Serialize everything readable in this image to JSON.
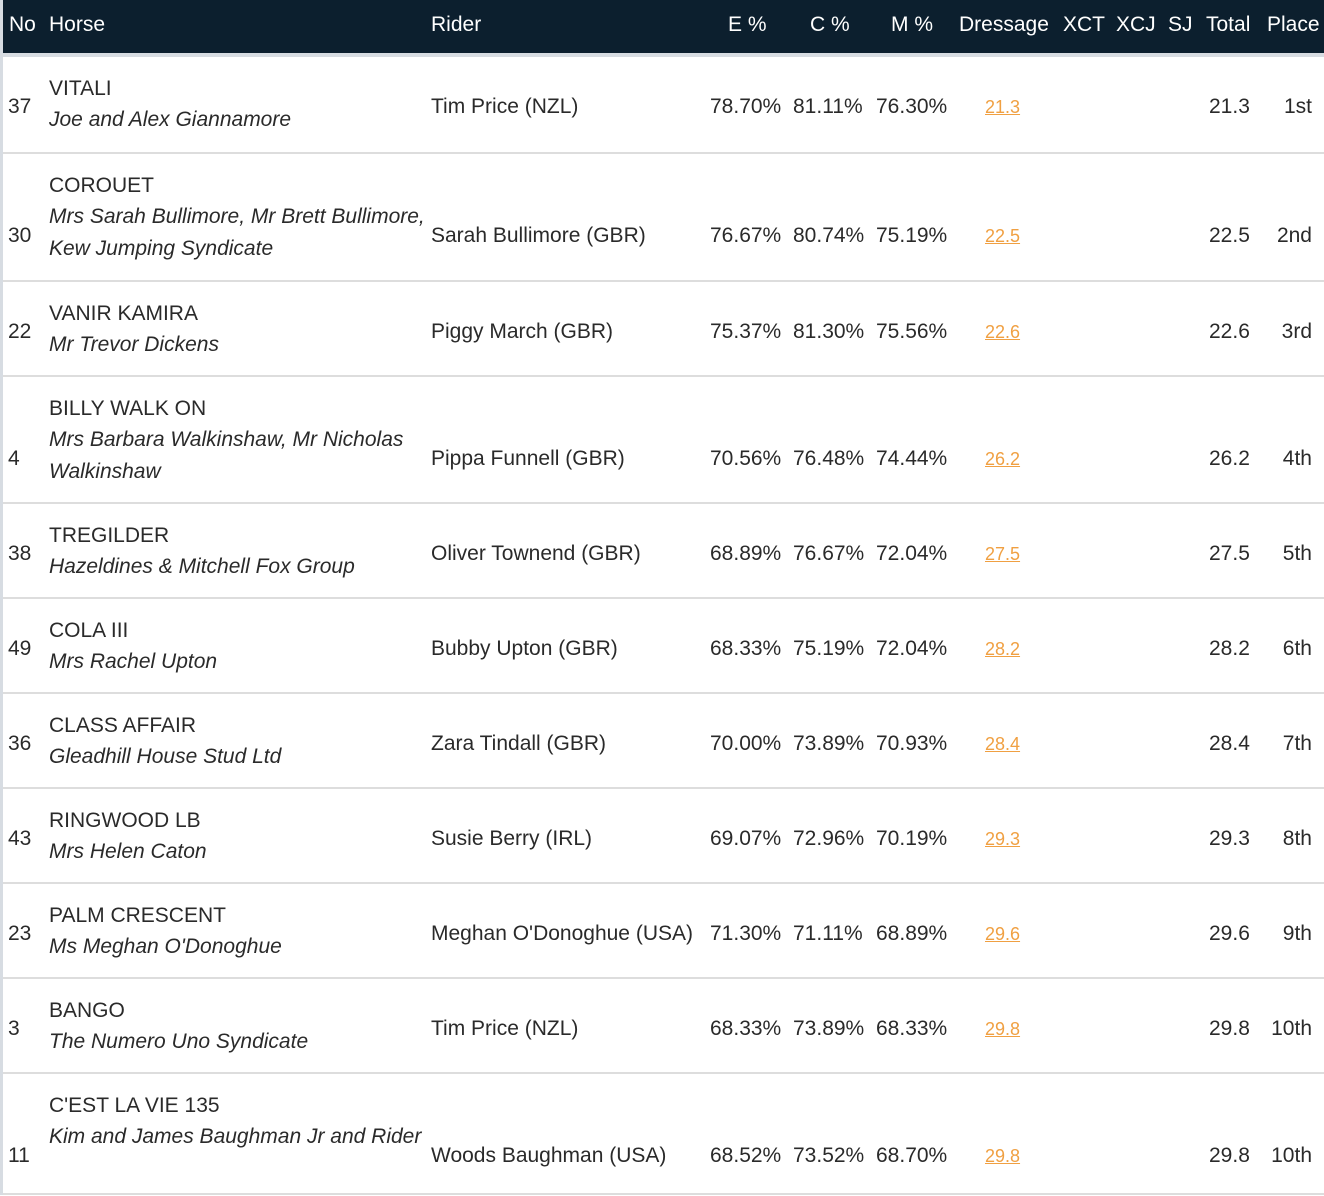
{
  "colors": {
    "header_bg": "#0c1f2e",
    "link": "#f0a042"
  },
  "columns": {
    "no": "No",
    "horse": "Horse",
    "rider": "Rider",
    "e": "E %",
    "c": "C %",
    "m": "M %",
    "dressage": "Dressage",
    "xct": "XCT",
    "xcj": "XCJ",
    "sj": "SJ",
    "total": "Total",
    "place": "Place"
  },
  "rows": [
    {
      "no": "37",
      "horse": "VITALI",
      "owner": "Joe and Alex Giannamore",
      "rider": "Tim Price (NZL)",
      "e": "78.70%",
      "c": "81.11%",
      "m": "76.30%",
      "dressage": "21.3",
      "total": "21.3",
      "place": "1st"
    },
    {
      "no": "30",
      "horse": "COROUET",
      "owner": "Mrs Sarah Bullimore, Mr Brett Bullimore, Kew Jumping Syndicate",
      "rider": "Sarah Bullimore (GBR)",
      "e": "76.67%",
      "c": "80.74%",
      "m": "75.19%",
      "dressage": "22.5",
      "total": "22.5",
      "place": "2nd"
    },
    {
      "no": "22",
      "horse": "VANIR KAMIRA",
      "owner": "Mr Trevor Dickens",
      "rider": "Piggy March (GBR)",
      "e": "75.37%",
      "c": "81.30%",
      "m": "75.56%",
      "dressage": "22.6",
      "total": "22.6",
      "place": "3rd"
    },
    {
      "no": "4",
      "horse": "BILLY WALK ON",
      "owner": "Mrs Barbara Walkinshaw, Mr Nicholas Walkinshaw",
      "rider": "Pippa Funnell (GBR)",
      "e": "70.56%",
      "c": "76.48%",
      "m": "74.44%",
      "dressage": "26.2",
      "total": "26.2",
      "place": "4th"
    },
    {
      "no": "38",
      "horse": "TREGILDER",
      "owner": "Hazeldines & Mitchell Fox Group",
      "rider": "Oliver Townend (GBR)",
      "e": "68.89%",
      "c": "76.67%",
      "m": "72.04%",
      "dressage": "27.5",
      "total": "27.5",
      "place": "5th"
    },
    {
      "no": "49",
      "horse": "COLA III",
      "owner": "Mrs Rachel Upton",
      "rider": "Bubby Upton (GBR)",
      "e": "68.33%",
      "c": "75.19%",
      "m": "72.04%",
      "dressage": "28.2",
      "total": "28.2",
      "place": "6th"
    },
    {
      "no": "36",
      "horse": "CLASS AFFAIR",
      "owner": "Gleadhill House Stud Ltd",
      "rider": "Zara Tindall (GBR)",
      "e": "70.00%",
      "c": "73.89%",
      "m": "70.93%",
      "dressage": "28.4",
      "total": "28.4",
      "place": "7th"
    },
    {
      "no": "43",
      "horse": "RINGWOOD LB",
      "owner": "Mrs Helen Caton",
      "rider": "Susie Berry (IRL)",
      "e": "69.07%",
      "c": "72.96%",
      "m": "70.19%",
      "dressage": "29.3",
      "total": "29.3",
      "place": "8th"
    },
    {
      "no": "23",
      "horse": "PALM CRESCENT",
      "owner": "Ms Meghan O'Donoghue",
      "rider": "Meghan O'Donoghue (USA)",
      "e": "71.30%",
      "c": "71.11%",
      "m": "68.89%",
      "dressage": "29.6",
      "total": "29.6",
      "place": "9th"
    },
    {
      "no": "3",
      "horse": "BANGO",
      "owner": "The Numero Uno Syndicate",
      "rider": "Tim Price (NZL)",
      "e": "68.33%",
      "c": "73.89%",
      "m": "68.33%",
      "dressage": "29.8",
      "total": "29.8",
      "place": "10th"
    },
    {
      "no": "11",
      "horse": "C'EST LA VIE 135",
      "owner": "Kim and James Baughman Jr and Rider",
      "rider": "Woods Baughman (USA)",
      "e": "68.52%",
      "c": "73.52%",
      "m": "68.70%",
      "dressage": "29.8",
      "total": "29.8",
      "place": "10th"
    }
  ]
}
